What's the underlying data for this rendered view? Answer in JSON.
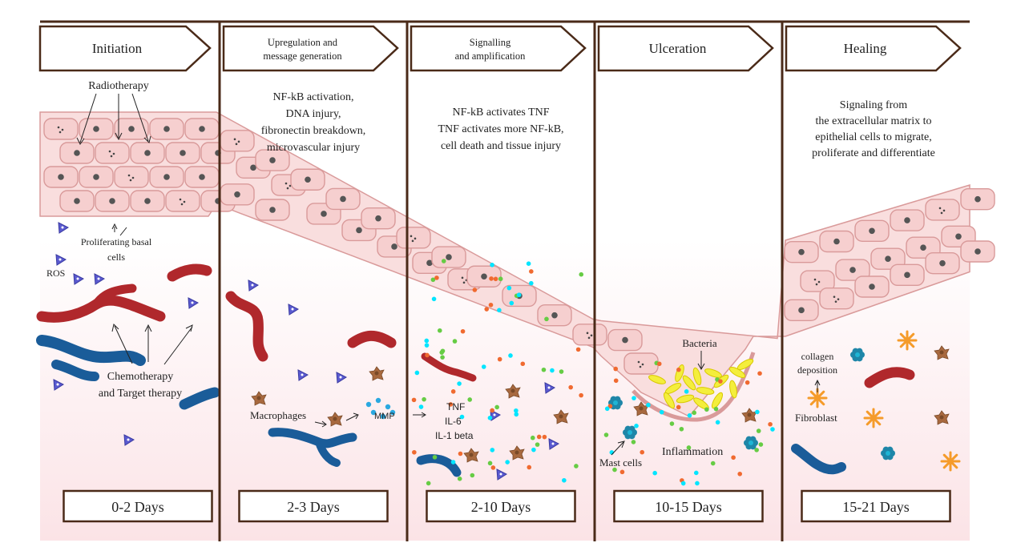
{
  "colors": {
    "frame": "#4a2a18",
    "tissue_fill": "#f6cfcf",
    "tissue_stroke": "#d99a9a",
    "nucleus": "#555555",
    "background_pink": "#fbe3e6",
    "blood_vessel_red": "#b0282c",
    "blood_vessel_blue": "#1a5c99",
    "ros_purple": "#5a5ad0",
    "macrophage_brown": "#a8693f",
    "bacteria_yellow": "#f4ee3c",
    "fibroblast_orange": "#f59b2a",
    "mast_cell_teal": "#1e86a8",
    "dot_cyan": "#00e5ff",
    "dot_green": "#66cc44",
    "dot_orange": "#f06a30"
  },
  "stages": [
    {
      "key": "initiation",
      "title": "Initiation",
      "days": "0-2 Days"
    },
    {
      "key": "upregulation",
      "title": "Upregulation and message generation",
      "days": "2-3 Days"
    },
    {
      "key": "signalling",
      "title": "Signalling and amplification",
      "days": "2-10 Days"
    },
    {
      "key": "ulceration",
      "title": "Ulceration",
      "days": "10-15 Days"
    },
    {
      "key": "healing",
      "title": "Healing",
      "days": "15-21 Days"
    }
  ],
  "descriptions": {
    "upregulation": [
      "NF-kB activation,",
      "DNA injury,",
      "fibronectin breakdown,",
      "microvascular injury"
    ],
    "signalling": [
      "NF-kB activates TNF",
      "TNF activates more NF-kB,",
      "cell death and tissue injury"
    ],
    "healing": [
      "Signaling from",
      "the extracellular matrix to",
      "epithelial cells to migrate,",
      "proliferate and differentiate"
    ]
  },
  "labels": {
    "radiotherapy": "Radiotherapy",
    "proliferating_basal": [
      "Proliferating basal",
      "cells"
    ],
    "ros": "ROS",
    "chemotherapy": [
      "Chemotherapy",
      "and Target therapy"
    ],
    "macrophages": "Macrophages",
    "mmp": "MMP",
    "cytokines": [
      "TNF",
      "IL-6",
      "IL-1 beta"
    ],
    "bacteria": "Bacteria",
    "mast_cells": "Mast cells",
    "inflammation": "Inflammation",
    "collagen": [
      "collagen",
      "deposition"
    ],
    "fibroblast": "Fibroblast"
  },
  "icons": [
    "ros-triangle-icon",
    "macrophage-icon",
    "mast-cell-icon",
    "fibroblast-icon",
    "bacteria-icon",
    "blood-vessel-icon",
    "epithelial-cell-icon"
  ]
}
